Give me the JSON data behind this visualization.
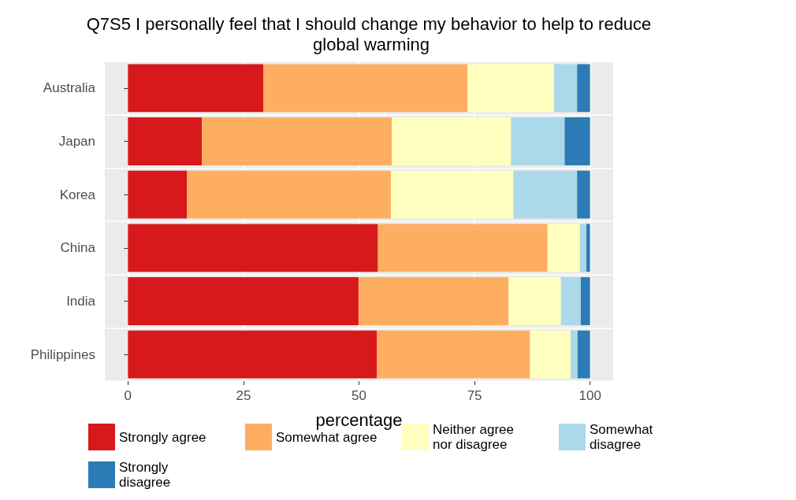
{
  "chart_data": {
    "type": "bar",
    "orientation": "horizontal",
    "stacked": true,
    "title": "Q7S5 I personally feel that I should change my behavior to help to reduce global warming",
    "xlabel": "percentage",
    "categories": [
      "Australia",
      "Japan",
      "Korea",
      "China",
      "India",
      "Philippines"
    ],
    "series": [
      {
        "name": "Strongly agree",
        "color": "#d7191c",
        "values": [
          29.3,
          16.0,
          12.8,
          54.1,
          49.9,
          53.9
        ]
      },
      {
        "name": "Somewhat agree",
        "color": "#fdae61",
        "values": [
          44.2,
          41.1,
          44.1,
          36.7,
          32.5,
          33.1
        ]
      },
      {
        "name": "Neither agree nor disagree",
        "color": "#ffffbf",
        "values": [
          18.7,
          25.8,
          26.5,
          7.0,
          11.3,
          8.8
        ]
      },
      {
        "name": "Somewhat disagree",
        "color": "#abd9e9",
        "values": [
          5.0,
          11.6,
          13.8,
          1.4,
          4.3,
          1.5
        ]
      },
      {
        "name": "Strongly disagree",
        "color": "#2c7bb6",
        "values": [
          2.8,
          5.5,
          2.8,
          0.8,
          2.0,
          2.7
        ]
      }
    ],
    "xlim": [
      -5,
      105
    ],
    "xticks": [
      0,
      25,
      50,
      75,
      100
    ],
    "grid": true,
    "legend": "bottom"
  }
}
